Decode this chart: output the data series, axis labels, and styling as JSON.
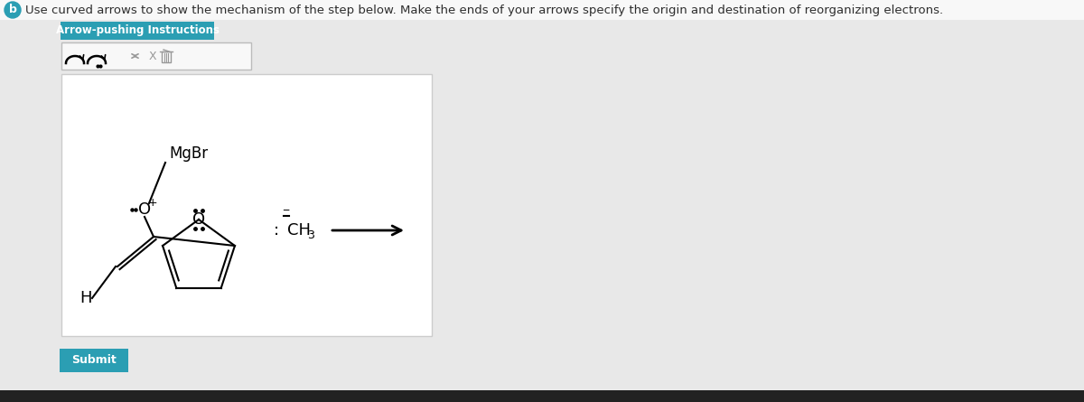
{
  "bg_color": "#e8e8e8",
  "white_top_bg": "#f5f5f5",
  "white_box_bg": "#ffffff",
  "header_text": "Use curved arrows to show the mechanism of the step below. Make the ends of your arrows specify the origin and destination of reorganizing electrons.",
  "header_circle_color": "#2b9eb3",
  "header_circle_text": "b",
  "button_color": "#2b9eb3",
  "button_text": "Arrow-pushing Instructions",
  "submit_button_color": "#2b9eb3",
  "submit_text": "Submit",
  "bottom_bar_color": "#222222",
  "text_color": "#2d2d2d",
  "molecule_box_border": "#cccccc"
}
